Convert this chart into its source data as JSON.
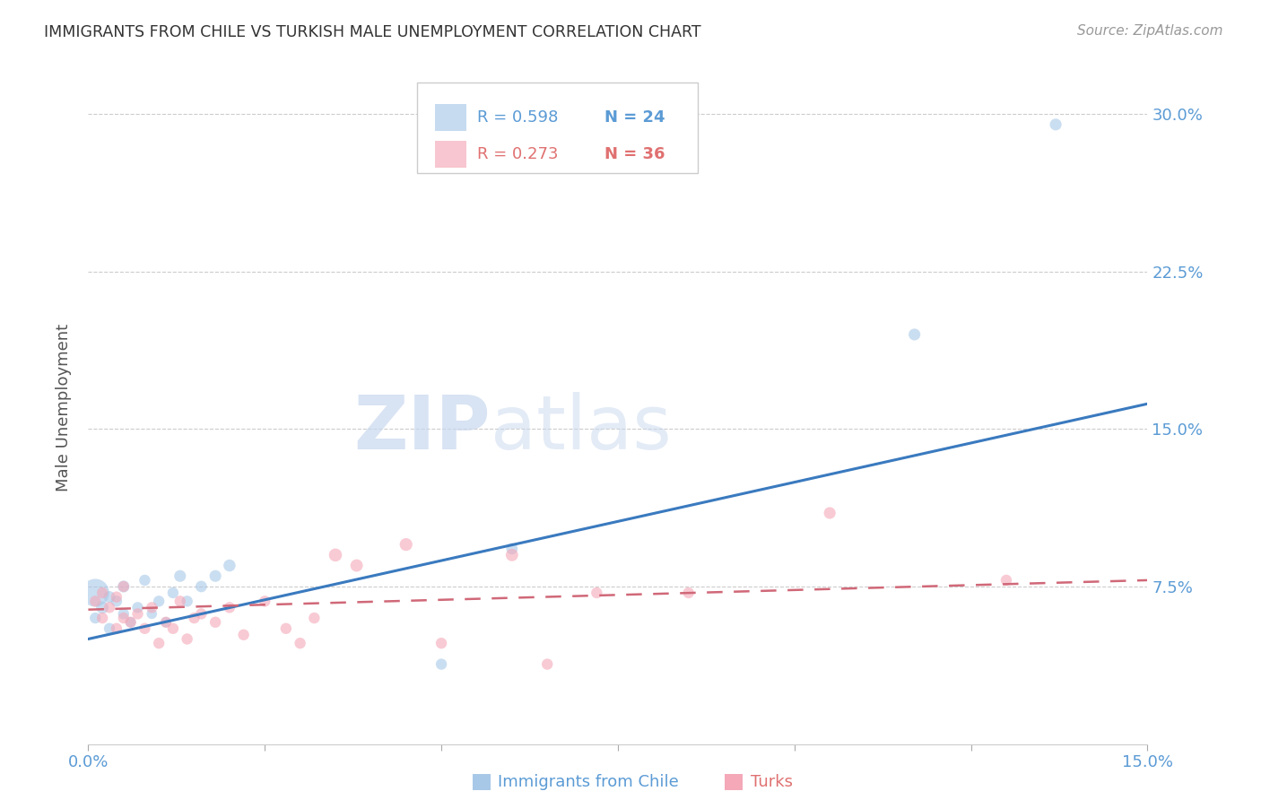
{
  "title": "IMMIGRANTS FROM CHILE VS TURKISH MALE UNEMPLOYMENT CORRELATION CHART",
  "source": "Source: ZipAtlas.com",
  "ylabel": "Male Unemployment",
  "xlim": [
    0.0,
    0.15
  ],
  "ylim": [
    0.0,
    0.32
  ],
  "yticks": [
    0.075,
    0.15,
    0.225,
    0.3
  ],
  "ytick_labels": [
    "7.5%",
    "15.0%",
    "22.5%",
    "30.0%"
  ],
  "xticks": [
    0.0,
    0.025,
    0.05,
    0.075,
    0.1,
    0.125,
    0.15
  ],
  "xtick_labels": [
    "0.0%",
    "",
    "",
    "",
    "",
    "",
    "15.0%"
  ],
  "blue_color": "#a8c8e8",
  "pink_color": "#f4a8b8",
  "blue_line_color": "#3a7abf",
  "pink_line_color": "#d06878",
  "watermark_zip": "ZIP",
  "watermark_atlas": "atlas",
  "chile_scatter_x": [
    0.001,
    0.001,
    0.002,
    0.003,
    0.003,
    0.004,
    0.005,
    0.005,
    0.006,
    0.007,
    0.008,
    0.009,
    0.01,
    0.011,
    0.012,
    0.013,
    0.014,
    0.016,
    0.018,
    0.02,
    0.05,
    0.06,
    0.117,
    0.137
  ],
  "chile_scatter_y": [
    0.072,
    0.06,
    0.065,
    0.07,
    0.055,
    0.068,
    0.062,
    0.075,
    0.058,
    0.065,
    0.078,
    0.062,
    0.068,
    0.058,
    0.072,
    0.08,
    0.068,
    0.075,
    0.08,
    0.085,
    0.038,
    0.093,
    0.195,
    0.295
  ],
  "chile_scatter_size": [
    500,
    80,
    100,
    90,
    80,
    80,
    80,
    90,
    70,
    80,
    80,
    70,
    80,
    70,
    80,
    90,
    80,
    85,
    90,
    95,
    80,
    85,
    90,
    90
  ],
  "turks_scatter_x": [
    0.001,
    0.002,
    0.002,
    0.003,
    0.004,
    0.004,
    0.005,
    0.005,
    0.006,
    0.007,
    0.008,
    0.009,
    0.01,
    0.011,
    0.012,
    0.013,
    0.014,
    0.015,
    0.016,
    0.018,
    0.02,
    0.022,
    0.025,
    0.028,
    0.03,
    0.032,
    0.035,
    0.038,
    0.045,
    0.05,
    0.06,
    0.065,
    0.072,
    0.085,
    0.105,
    0.13
  ],
  "turks_scatter_y": [
    0.068,
    0.06,
    0.072,
    0.065,
    0.055,
    0.07,
    0.075,
    0.06,
    0.058,
    0.062,
    0.055,
    0.065,
    0.048,
    0.058,
    0.055,
    0.068,
    0.05,
    0.06,
    0.062,
    0.058,
    0.065,
    0.052,
    0.068,
    0.055,
    0.048,
    0.06,
    0.09,
    0.085,
    0.095,
    0.048,
    0.09,
    0.038,
    0.072,
    0.072,
    0.11,
    0.078
  ],
  "turks_scatter_size": [
    80,
    80,
    80,
    80,
    80,
    80,
    80,
    80,
    80,
    80,
    80,
    80,
    80,
    80,
    80,
    80,
    80,
    80,
    80,
    80,
    80,
    80,
    80,
    80,
    80,
    80,
    110,
    100,
    105,
    80,
    100,
    80,
    80,
    80,
    90,
    80
  ],
  "chile_trendline_x": [
    0.0,
    0.15
  ],
  "chile_trendline_y": [
    0.05,
    0.162
  ],
  "turks_trendline_x": [
    0.0,
    0.15
  ],
  "turks_trendline_y": [
    0.064,
    0.078
  ],
  "grid_color": "#cccccc",
  "bg_color": "#ffffff",
  "tick_color": "#5b9bd5",
  "title_color": "#333333",
  "source_color": "#999999",
  "legend_r1_color": "#5b9bd5",
  "legend_n1_color": "#5b9bd5",
  "legend_r2_color": "#e07070",
  "legend_n2_color": "#e07070"
}
